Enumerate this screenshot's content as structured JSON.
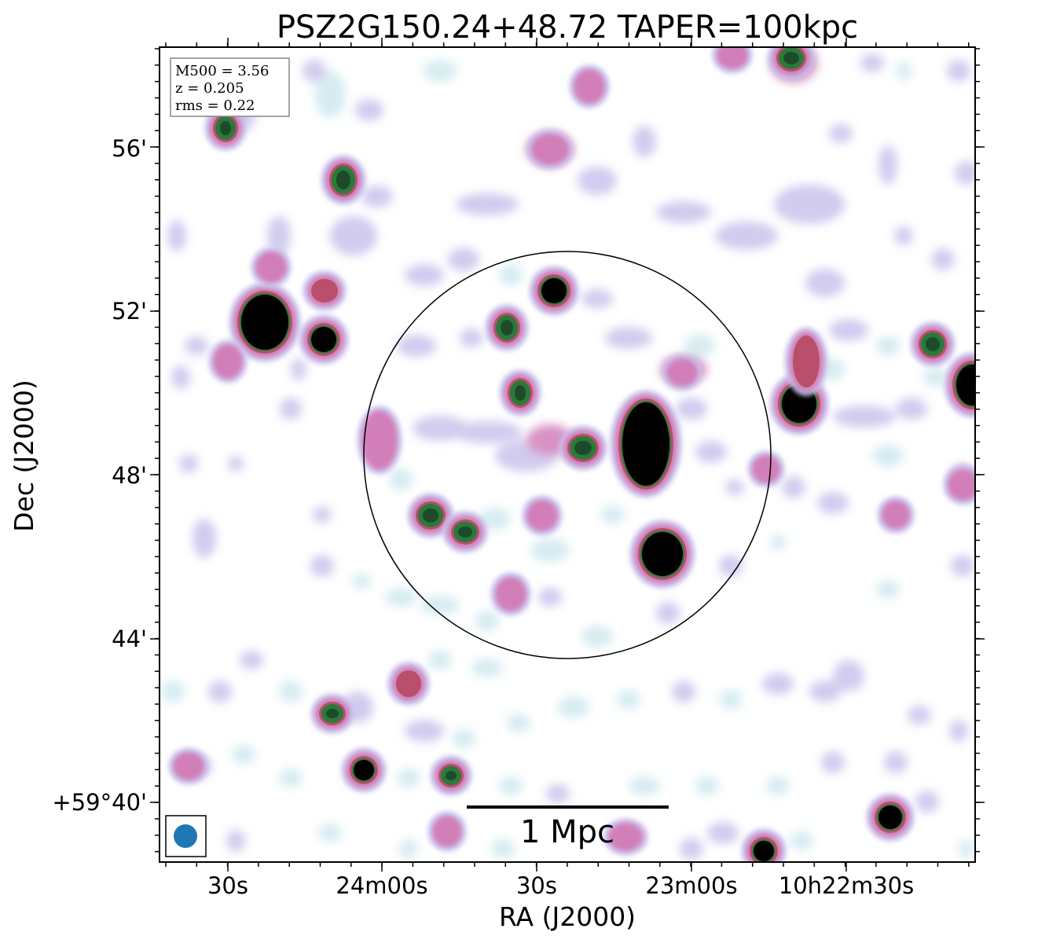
{
  "title": "PSZ2G150.24+48.72 TAPER=100kpc",
  "xlabel": "RA (J2000)",
  "ylabel": "Dec (J2000)",
  "x_ticks": [
    "30s",
    "24m00s",
    "30s",
    "23m00s",
    "10h22m30s"
  ],
  "y_ticks": [
    "56'",
    "52'",
    "48'",
    "44'",
    "+59°40'"
  ],
  "info": {
    "m500": "M500 = 3.56",
    "z": "z = 0.205",
    "rms": "rms = 0.22"
  },
  "scalebar_label": "1 Mpc",
  "colors": {
    "faint": "#cfe9ee",
    "low": "#c9c2ec",
    "mid": "#d27fb9",
    "mid2": "#b94f6a",
    "high": "#2a7a3a",
    "peak": "#000000",
    "beam": "#1f77b4"
  }
}
